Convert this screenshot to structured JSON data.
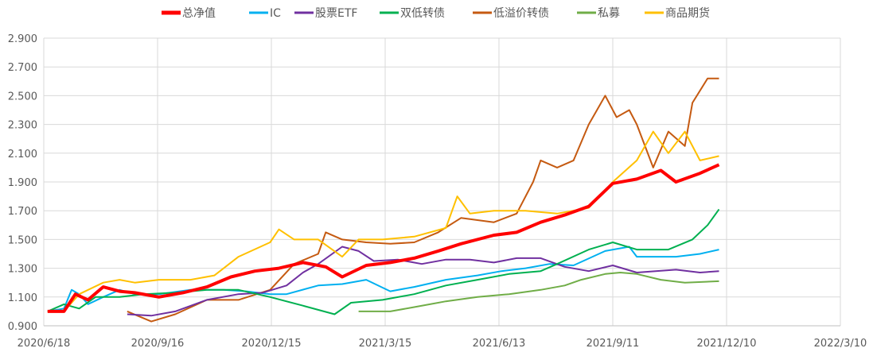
{
  "chart_data": {
    "type": "line",
    "title": "",
    "xlabel": "",
    "ylabel": "",
    "ylim": [
      0.9,
      2.9
    ],
    "yticks": [
      "0.900",
      "1.100",
      "1.300",
      "1.500",
      "1.700",
      "1.900",
      "2.100",
      "2.300",
      "2.500",
      "2.700",
      "2.900"
    ],
    "x_unit": "days since 2020/6/18",
    "xlim": [
      0,
      630
    ],
    "xticks": [
      "2020/6/18",
      "2020/9/16",
      "2020/12/15",
      "2021/3/15",
      "2021/6/13",
      "2021/9/11",
      "2021/12/10",
      "2022/3/10"
    ],
    "grid": true,
    "legend_position": "top",
    "series": [
      {
        "name": "总净值",
        "color": "#FF0000",
        "width": 4,
        "x": [
          3,
          16,
          25,
          35,
          47,
          60,
          72,
          91,
          110,
          129,
          148,
          167,
          186,
          205,
          223,
          236,
          255,
          274,
          293,
          312,
          330,
          356,
          374,
          393,
          412,
          431,
          450,
          469,
          488,
          500,
          519,
          534
        ],
        "y": [
          1.0,
          1.0,
          1.12,
          1.08,
          1.17,
          1.14,
          1.13,
          1.1,
          1.13,
          1.17,
          1.24,
          1.28,
          1.3,
          1.34,
          1.31,
          1.24,
          1.32,
          1.34,
          1.37,
          1.42,
          1.47,
          1.53,
          1.55,
          1.62,
          1.67,
          1.73,
          1.89,
          1.92,
          1.98,
          1.9,
          1.96,
          2.02
        ]
      },
      {
        "name": "IC",
        "color": "#00B0F0",
        "width": 2,
        "x": [
          3,
          16,
          22,
          28,
          35,
          47,
          60,
          72,
          91,
          116,
          142,
          160,
          179,
          192,
          217,
          236,
          255,
          274,
          293,
          318,
          343,
          362,
          381,
          400,
          419,
          444,
          463,
          469,
          500,
          519,
          534
        ],
        "y": [
          1.0,
          1.02,
          1.15,
          1.12,
          1.05,
          1.1,
          1.15,
          1.12,
          1.12,
          1.15,
          1.15,
          1.14,
          1.12,
          1.12,
          1.18,
          1.19,
          1.22,
          1.14,
          1.17,
          1.22,
          1.25,
          1.28,
          1.3,
          1.33,
          1.32,
          1.42,
          1.45,
          1.38,
          1.38,
          1.4,
          1.43
        ]
      },
      {
        "name": "股票ETF",
        "color": "#7030A0",
        "width": 2,
        "x": [
          66,
          85,
          104,
          129,
          154,
          173,
          192,
          205,
          217,
          236,
          249,
          261,
          280,
          299,
          318,
          337,
          356,
          374,
          393,
          412,
          431,
          450,
          469,
          500,
          519,
          534
        ],
        "y": [
          0.98,
          0.97,
          1.0,
          1.08,
          1.12,
          1.13,
          1.18,
          1.27,
          1.33,
          1.45,
          1.42,
          1.35,
          1.36,
          1.33,
          1.36,
          1.36,
          1.34,
          1.37,
          1.37,
          1.31,
          1.28,
          1.32,
          1.27,
          1.29,
          1.27,
          1.28
        ]
      },
      {
        "name": "双低转债",
        "color": "#00B050",
        "width": 2,
        "x": [
          3,
          16,
          28,
          41,
          60,
          79,
          104,
          129,
          154,
          179,
          205,
          230,
          243,
          268,
          293,
          318,
          343,
          368,
          393,
          406,
          431,
          450,
          469,
          494,
          513,
          525,
          534
        ],
        "y": [
          1.0,
          1.05,
          1.02,
          1.1,
          1.1,
          1.12,
          1.13,
          1.15,
          1.15,
          1.1,
          1.04,
          0.98,
          1.06,
          1.08,
          1.12,
          1.18,
          1.22,
          1.26,
          1.28,
          1.33,
          1.43,
          1.48,
          1.43,
          1.43,
          1.5,
          1.6,
          1.71
        ]
      },
      {
        "name": "低溢价转债",
        "color": "#C55A11",
        "width": 2,
        "x": [
          66,
          85,
          104,
          129,
          154,
          179,
          198,
          217,
          223,
          236,
          255,
          274,
          293,
          312,
          330,
          356,
          374,
          387,
          393,
          406,
          419,
          431,
          444,
          453,
          463,
          469,
          482,
          494,
          507,
          513,
          525,
          534
        ],
        "y": [
          1.0,
          0.93,
          0.98,
          1.08,
          1.08,
          1.15,
          1.33,
          1.4,
          1.55,
          1.5,
          1.48,
          1.47,
          1.48,
          1.55,
          1.65,
          1.62,
          1.68,
          1.9,
          2.05,
          2.0,
          2.05,
          2.3,
          2.5,
          2.35,
          2.4,
          2.3,
          2.0,
          2.25,
          2.15,
          2.45,
          2.62,
          2.62
        ]
      },
      {
        "name": "私募",
        "color": "#70AD47",
        "width": 2,
        "x": [
          249,
          274,
          293,
          318,
          343,
          368,
          393,
          412,
          425,
          444,
          456,
          469,
          488,
          507,
          534
        ],
        "y": [
          1.0,
          1.0,
          1.03,
          1.07,
          1.1,
          1.12,
          1.15,
          1.18,
          1.22,
          1.26,
          1.27,
          1.26,
          1.22,
          1.2,
          1.21
        ]
      },
      {
        "name": "商品期货",
        "color": "#FFC000",
        "width": 2,
        "x": [
          3,
          16,
          28,
          47,
          60,
          72,
          91,
          116,
          135,
          154,
          179,
          186,
          198,
          217,
          236,
          249,
          268,
          293,
          318,
          327,
          337,
          356,
          381,
          406,
          431,
          450,
          469,
          482,
          494,
          507,
          519,
          534
        ],
        "y": [
          1.0,
          1.0,
          1.12,
          1.2,
          1.22,
          1.2,
          1.22,
          1.22,
          1.25,
          1.38,
          1.48,
          1.57,
          1.5,
          1.5,
          1.38,
          1.5,
          1.5,
          1.52,
          1.58,
          1.8,
          1.68,
          1.7,
          1.7,
          1.68,
          1.72,
          1.9,
          2.05,
          2.25,
          2.1,
          2.25,
          2.05,
          2.08
        ]
      }
    ]
  }
}
